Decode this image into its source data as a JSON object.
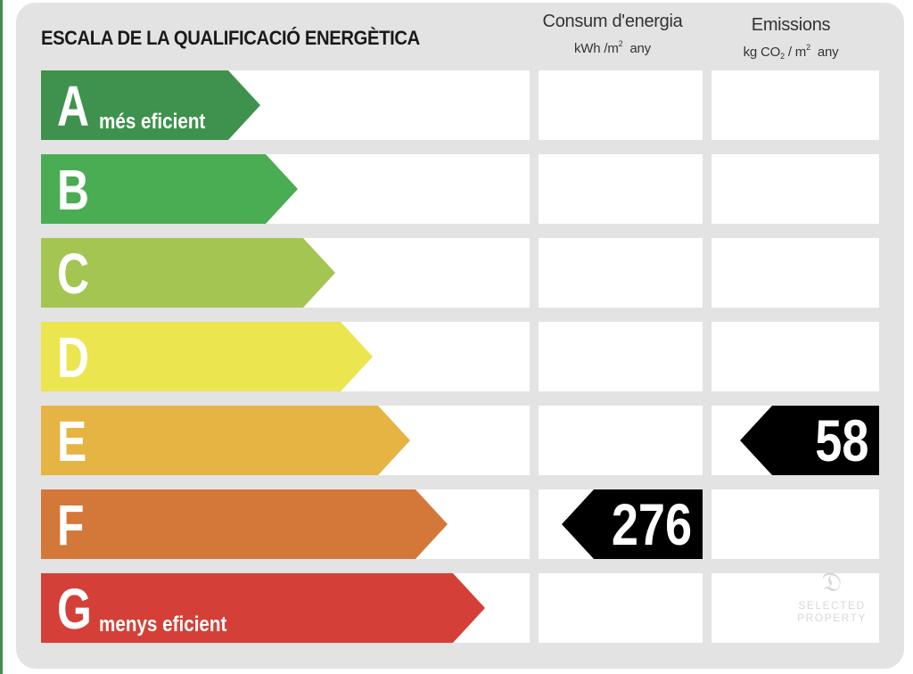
{
  "title": "ESCALA DE LA QUALIFICACIÓ ENERGÈTICA",
  "columns": {
    "energy": {
      "title": "Consum d'energia",
      "unit_base": "kWh /m",
      "unit_sup": "2",
      "unit_tail": "any"
    },
    "emissions": {
      "title": "Emissions",
      "unit_base": "kg CO",
      "unit_sub": "2",
      "unit_mid": "/ m",
      "unit_sup": "2",
      "unit_tail": "any"
    }
  },
  "ratings": [
    {
      "letter": "A",
      "caption": "més eficient",
      "color": "#3f924d"
    },
    {
      "letter": "B",
      "caption": "",
      "color": "#4aac53"
    },
    {
      "letter": "C",
      "caption": "",
      "color": "#a4c551"
    },
    {
      "letter": "D",
      "caption": "",
      "color": "#ebe54f"
    },
    {
      "letter": "E",
      "caption": "",
      "color": "#e6b443"
    },
    {
      "letter": "F",
      "caption": "",
      "color": "#d4783a"
    },
    {
      "letter": "G",
      "caption": "menys eficient",
      "color": "#d44038"
    }
  ],
  "energy_value": {
    "rating": "F",
    "value": "276"
  },
  "emissions_value": {
    "rating": "E",
    "value": "58"
  },
  "watermark": {
    "line1": "SELECTED",
    "line2": "PROPERTY"
  }
}
